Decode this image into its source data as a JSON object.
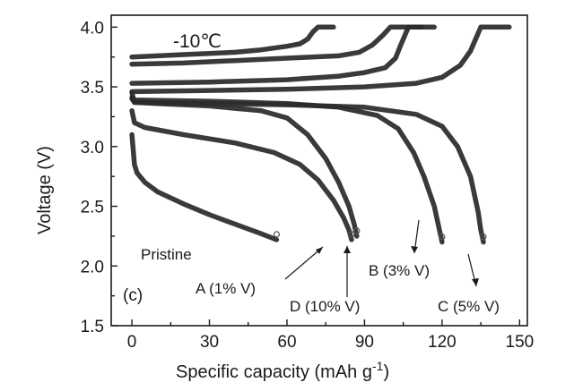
{
  "chart_data": {
    "type": "line",
    "title": "",
    "xlabel": "Specific capacity (mAh g",
    "xlabel_sup": "-1",
    "xlabel_end": ")",
    "ylabel": "Voltage (V)",
    "xlim": [
      -8,
      153
    ],
    "ylim": [
      1.5,
      4.1
    ],
    "xticks": [
      0,
      30,
      60,
      90,
      120,
      150
    ],
    "yticks": [
      1.5,
      2.0,
      2.5,
      3.0,
      3.5,
      4.0
    ],
    "ytick_labels": [
      "1.5",
      "2.0",
      "2.5",
      "3.0",
      "3.5",
      "4.0"
    ],
    "temperature_label": "-10℃",
    "panel_label": "(c)",
    "grid": false,
    "series": [
      {
        "name": "Pristine",
        "charge": [],
        "discharge": [
          [
            0,
            3.1
          ],
          [
            1,
            2.85
          ],
          [
            2,
            2.78
          ],
          [
            5,
            2.7
          ],
          [
            10,
            2.62
          ],
          [
            20,
            2.52
          ],
          [
            30,
            2.43
          ],
          [
            40,
            2.35
          ],
          [
            50,
            2.27
          ],
          [
            56,
            2.22
          ]
        ]
      },
      {
        "name": "A (1% V)",
        "charge": [
          [
            0,
            3.75
          ],
          [
            10,
            3.76
          ],
          [
            20,
            3.77
          ],
          [
            30,
            3.78
          ],
          [
            40,
            3.79
          ],
          [
            50,
            3.81
          ],
          [
            60,
            3.84
          ],
          [
            65,
            3.86
          ],
          [
            68,
            3.9
          ],
          [
            70,
            3.96
          ],
          [
            72,
            4.0
          ],
          [
            78,
            4.0
          ]
        ],
        "discharge": [
          [
            0,
            3.3
          ],
          [
            1,
            3.2
          ],
          [
            5,
            3.16
          ],
          [
            20,
            3.1
          ],
          [
            40,
            3.03
          ],
          [
            55,
            2.95
          ],
          [
            65,
            2.85
          ],
          [
            72,
            2.72
          ],
          [
            78,
            2.55
          ],
          [
            82,
            2.4
          ],
          [
            84,
            2.3
          ],
          [
            85,
            2.22
          ]
        ]
      },
      {
        "name": "D (10% V)",
        "charge": [
          [
            0,
            3.69
          ],
          [
            20,
            3.7
          ],
          [
            40,
            3.72
          ],
          [
            60,
            3.74
          ],
          [
            80,
            3.76
          ],
          [
            88,
            3.79
          ],
          [
            93,
            3.85
          ],
          [
            97,
            3.93
          ],
          [
            100,
            4.0
          ],
          [
            112,
            4.0
          ]
        ],
        "discharge": [
          [
            0,
            3.45
          ],
          [
            1,
            3.37
          ],
          [
            10,
            3.36
          ],
          [
            30,
            3.34
          ],
          [
            50,
            3.3
          ],
          [
            60,
            3.24
          ],
          [
            68,
            3.1
          ],
          [
            75,
            2.9
          ],
          [
            80,
            2.7
          ],
          [
            84,
            2.5
          ],
          [
            86,
            2.35
          ],
          [
            87,
            2.25
          ]
        ]
      },
      {
        "name": "B (3% V)",
        "charge": [
          [
            0,
            3.53
          ],
          [
            30,
            3.54
          ],
          [
            60,
            3.56
          ],
          [
            80,
            3.59
          ],
          [
            90,
            3.62
          ],
          [
            98,
            3.66
          ],
          [
            102,
            3.74
          ],
          [
            104,
            3.85
          ],
          [
            106,
            3.95
          ],
          [
            107,
            4.0
          ],
          [
            117,
            4.0
          ]
        ],
        "discharge": [
          [
            0,
            3.41
          ],
          [
            1,
            3.39
          ],
          [
            30,
            3.38
          ],
          [
            60,
            3.36
          ],
          [
            80,
            3.33
          ],
          [
            95,
            3.26
          ],
          [
            103,
            3.15
          ],
          [
            109,
            2.95
          ],
          [
            113,
            2.75
          ],
          [
            117,
            2.5
          ],
          [
            119,
            2.3
          ],
          [
            120,
            2.2
          ]
        ]
      },
      {
        "name": "C (5% V)",
        "charge": [
          [
            0,
            3.46
          ],
          [
            30,
            3.47
          ],
          [
            60,
            3.48
          ],
          [
            90,
            3.5
          ],
          [
            110,
            3.53
          ],
          [
            120,
            3.58
          ],
          [
            127,
            3.68
          ],
          [
            131,
            3.8
          ],
          [
            134,
            3.95
          ],
          [
            135,
            4.0
          ],
          [
            146,
            4.0
          ]
        ],
        "discharge": [
          [
            0,
            3.4
          ],
          [
            1,
            3.37
          ],
          [
            30,
            3.36
          ],
          [
            60,
            3.35
          ],
          [
            90,
            3.33
          ],
          [
            110,
            3.27
          ],
          [
            120,
            3.17
          ],
          [
            126,
            3.0
          ],
          [
            131,
            2.75
          ],
          [
            134,
            2.45
          ],
          [
            135,
            2.3
          ],
          [
            136,
            2.2
          ]
        ]
      }
    ],
    "annotations": [
      {
        "text": "Pristine"
      },
      {
        "text": "A (1% V)"
      },
      {
        "text": "D (10% V)"
      },
      {
        "text": "B (3% V)"
      },
      {
        "text": "C (5% V)"
      }
    ]
  }
}
